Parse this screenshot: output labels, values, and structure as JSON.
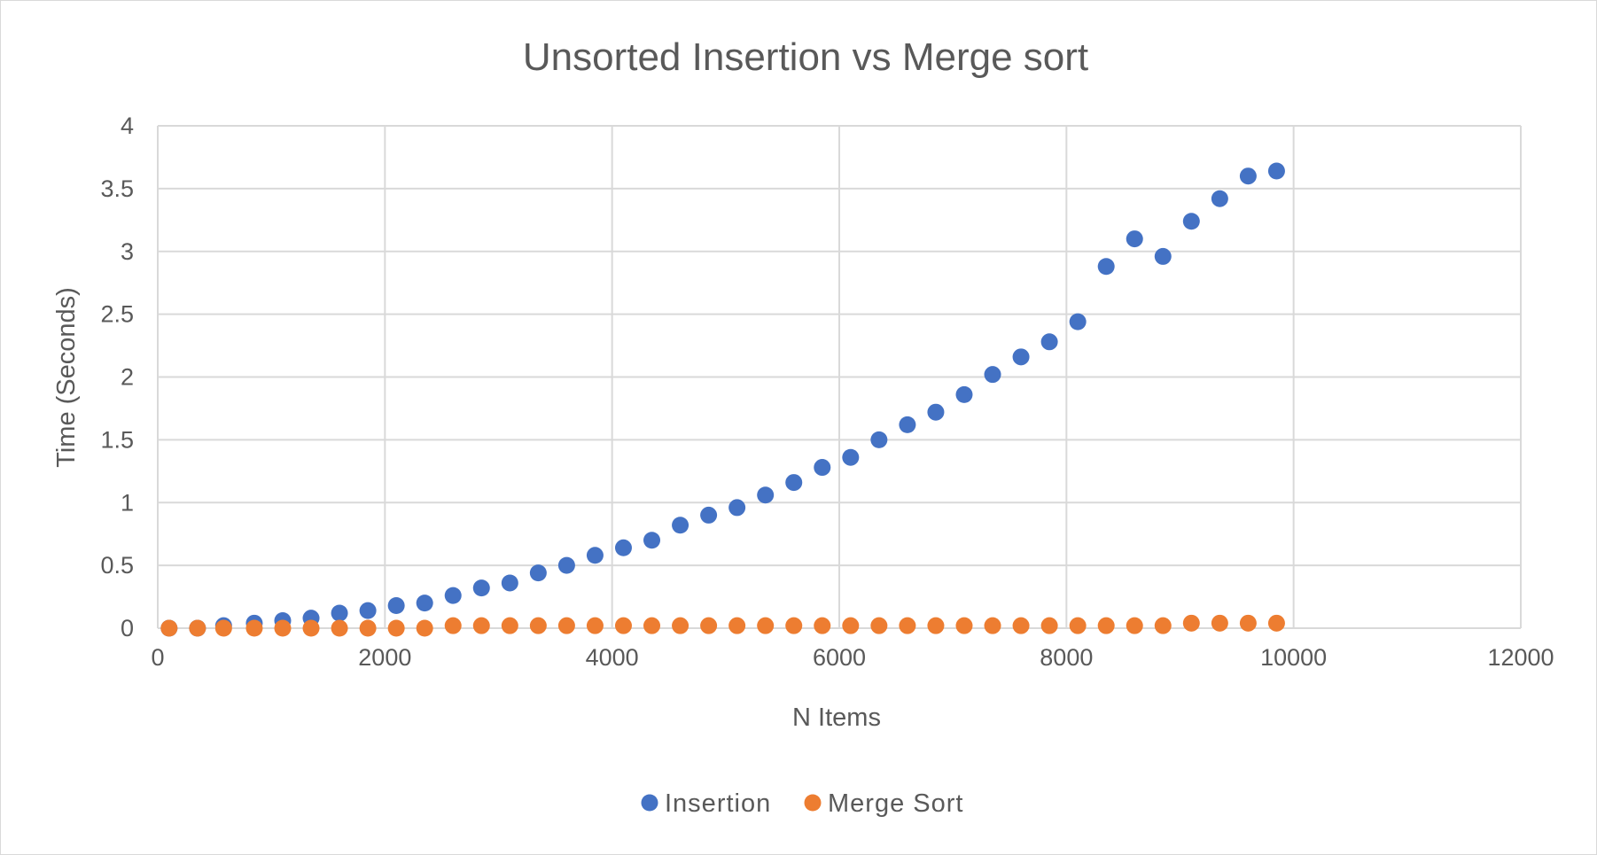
{
  "chart_data": {
    "type": "scatter",
    "title": "Unsorted Insertion vs Merge sort",
    "xlabel": "N Items",
    "ylabel": "Time (Seconds)",
    "xlim": [
      0,
      12000
    ],
    "ylim": [
      0,
      4
    ],
    "xticks": [
      "0",
      "2000",
      "4000",
      "6000",
      "8000",
      "10000",
      "12000"
    ],
    "yticks": [
      "0",
      "0.5",
      "1",
      "1.5",
      "2",
      "2.5",
      "3",
      "3.5",
      "4"
    ],
    "grid": true,
    "legend_position": "bottom",
    "series": [
      {
        "name": "Insertion",
        "color": "#4472C4",
        "x": [
          100,
          350,
          580,
          850,
          1100,
          1350,
          1600,
          1850,
          2100,
          2350,
          2600,
          2850,
          3100,
          3350,
          3600,
          3850,
          4100,
          4350,
          4600,
          4850,
          5100,
          5350,
          5600,
          5850,
          6100,
          6350,
          6600,
          6850,
          7100,
          7350,
          7600,
          7850,
          8100,
          8350,
          8600,
          8850,
          9100,
          9350,
          9600,
          9850
        ],
        "y": [
          0.0,
          0.0,
          0.02,
          0.04,
          0.06,
          0.08,
          0.12,
          0.14,
          0.18,
          0.2,
          0.26,
          0.32,
          0.36,
          0.44,
          0.5,
          0.58,
          0.64,
          0.7,
          0.82,
          0.9,
          0.96,
          1.06,
          1.16,
          1.28,
          1.36,
          1.5,
          1.62,
          1.72,
          1.86,
          2.02,
          2.16,
          2.28,
          2.44,
          2.88,
          3.1,
          2.96,
          3.24,
          3.42,
          3.6,
          3.64
        ]
      },
      {
        "name": "Merge Sort",
        "color": "#ED7D31",
        "x": [
          100,
          350,
          580,
          850,
          1100,
          1350,
          1600,
          1850,
          2100,
          2350,
          2600,
          2850,
          3100,
          3350,
          3600,
          3850,
          4100,
          4350,
          4600,
          4850,
          5100,
          5350,
          5600,
          5850,
          6100,
          6350,
          6600,
          6850,
          7100,
          7350,
          7600,
          7850,
          8100,
          8350,
          8600,
          8850,
          9100,
          9350,
          9600,
          9850
        ],
        "y": [
          0.0,
          0.0,
          0.0,
          0.0,
          0.0,
          0.0,
          0.0,
          0.0,
          0.0,
          0.0,
          0.02,
          0.02,
          0.02,
          0.02,
          0.02,
          0.02,
          0.02,
          0.02,
          0.02,
          0.02,
          0.02,
          0.02,
          0.02,
          0.02,
          0.02,
          0.02,
          0.02,
          0.02,
          0.02,
          0.02,
          0.02,
          0.02,
          0.02,
          0.02,
          0.02,
          0.02,
          0.04,
          0.04,
          0.04,
          0.04
        ]
      }
    ]
  }
}
